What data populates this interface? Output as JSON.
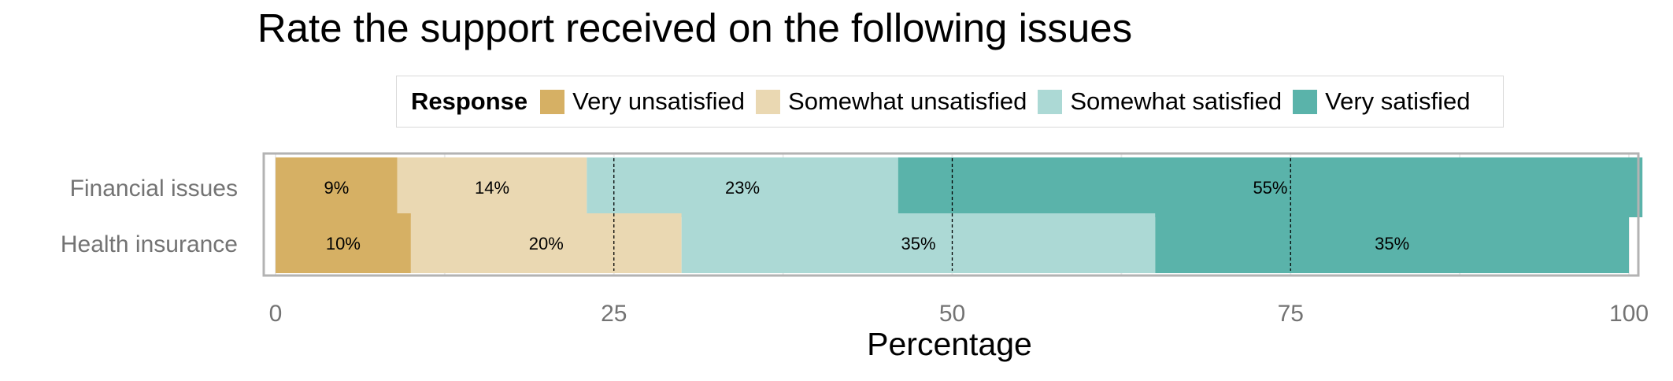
{
  "chart_data": {
    "type": "bar",
    "orientation": "horizontal",
    "stacked": true,
    "title": "Rate the support received on the following issues",
    "xlabel": "Percentage",
    "ylabel": "",
    "xlim": [
      0,
      100
    ],
    "x_ticks": [
      "0",
      "25",
      "50",
      "75",
      "100"
    ],
    "categories": [
      "Financial issues",
      "Health insurance"
    ],
    "legend": {
      "title": "Response",
      "placement": "top"
    },
    "series": [
      {
        "name": "Very unsatisfied",
        "color": "#d6b064",
        "values": [
          9,
          10
        ],
        "labels": [
          "9%",
          "10%"
        ]
      },
      {
        "name": "Somewhat unsatisfied",
        "color": "#ead8b2",
        "values": [
          14,
          20
        ],
        "labels": [
          "14%",
          "20%"
        ]
      },
      {
        "name": "Somewhat satisfied",
        "color": "#acd9d5",
        "values": [
          23,
          35
        ],
        "labels": [
          "23%",
          "35%"
        ]
      },
      {
        "name": "Very satisfied",
        "color": "#5ab3aa",
        "values": [
          55,
          35
        ],
        "labels": [
          "55%",
          "35%"
        ]
      }
    ],
    "grid": true,
    "reference_lines": [
      25,
      50,
      75
    ]
  }
}
